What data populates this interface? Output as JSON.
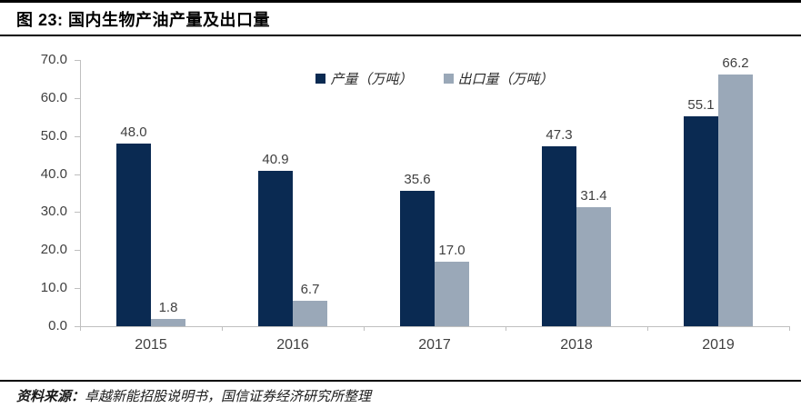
{
  "header": {
    "title": "图 23:  国内生物产油产量及出口量"
  },
  "chart_data": {
    "type": "bar",
    "title": "国内生物产油产量及出口量",
    "categories": [
      "2015",
      "2016",
      "2017",
      "2018",
      "2019"
    ],
    "series": [
      {
        "name": "产量（万吨）",
        "color": "#0a2a52",
        "values": [
          48.0,
          40.9,
          35.6,
          47.3,
          55.1
        ]
      },
      {
        "name": "出口量（万吨）",
        "color": "#9aa8b8",
        "values": [
          1.8,
          6.7,
          17.0,
          31.4,
          66.2
        ]
      }
    ],
    "ylim": [
      0,
      70
    ],
    "ytick_step": 10,
    "ytick_labels": [
      "0.0",
      "10.0",
      "20.0",
      "30.0",
      "40.0",
      "50.0",
      "60.0",
      "70.0"
    ],
    "value_label_decimals": 1,
    "legend_position": "top-center",
    "grid": false,
    "xlabel": "",
    "ylabel": ""
  },
  "footer": {
    "source_label": "资料来源：",
    "source_text": "卓越新能招股说明书，国信证券经济研究所整理"
  },
  "colors": {
    "production_bar": "#0a2a52",
    "export_bar": "#9aa8b8",
    "axis_line": "#bfbfbf",
    "text_label": "#404040",
    "rule": "#000000"
  }
}
